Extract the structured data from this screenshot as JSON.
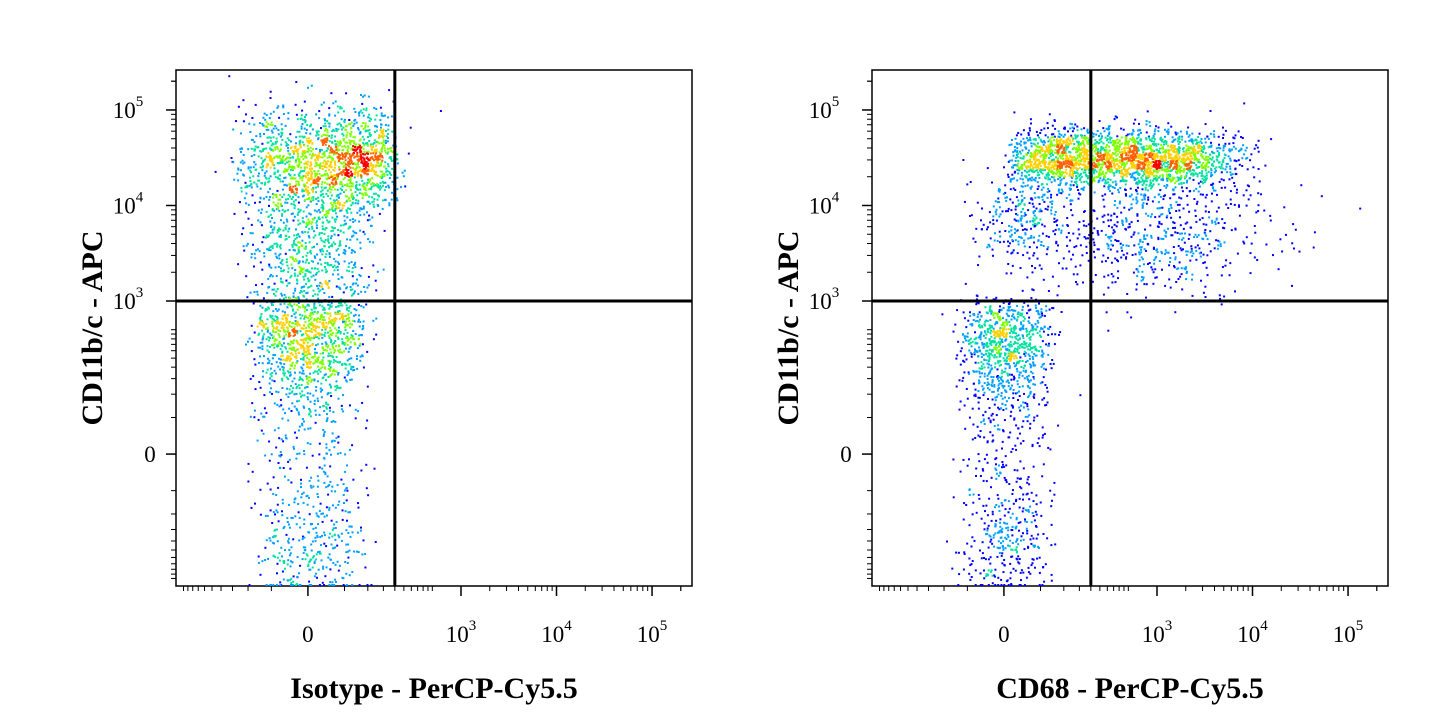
{
  "chart_data": [
    {
      "type": "scatter",
      "subtype": "flow-cytometry-density-dot-plot",
      "xlabel": "Isotype - PerCP-Cy5.5",
      "ylabel": "CD11b/c - APC",
      "xscale": "biexponential",
      "yscale": "biexponential",
      "x_ticks": [
        {
          "value": 0,
          "base": "0",
          "exp": ""
        },
        {
          "value": 1000,
          "base": "10",
          "exp": "3"
        },
        {
          "value": 10000,
          "base": "10",
          "exp": "4"
        },
        {
          "value": 100000,
          "base": "10",
          "exp": "5"
        }
      ],
      "y_ticks": [
        {
          "value": 0,
          "base": "0",
          "exp": ""
        },
        {
          "value": 1000,
          "base": "10",
          "exp": "3"
        },
        {
          "value": 10000,
          "base": "10",
          "exp": "4"
        },
        {
          "value": 100000,
          "base": "10",
          "exp": "5"
        }
      ],
      "quadrant_gate": {
        "x": 200,
        "y": 1000
      },
      "populations": [
        {
          "x_center": 40,
          "y_center": 30000,
          "x_spread": 70,
          "y_spread": 0.28,
          "count": 1500
        },
        {
          "x_center": 0,
          "y_center": 3000,
          "x_spread": 45,
          "y_spread": 0.55,
          "count": 900
        },
        {
          "x_center": 0,
          "y_center": 200,
          "x_spread": 40,
          "y_spread": 350,
          "count": 1300
        }
      ],
      "outliers": [
        {
          "x": 600,
          "y": 100000
        },
        {
          "x": 120,
          "y": -200
        },
        {
          "x": 100,
          "y": 1500
        }
      ],
      "grid": false,
      "legend": "none"
    },
    {
      "type": "scatter",
      "subtype": "flow-cytometry-density-dot-plot",
      "xlabel": "CD68 - PerCP-Cy5.5",
      "ylabel": "CD11b/c - APC",
      "xscale": "biexponential",
      "yscale": "biexponential",
      "x_ticks": [
        {
          "value": 0,
          "base": "0",
          "exp": ""
        },
        {
          "value": 1000,
          "base": "10",
          "exp": "3"
        },
        {
          "value": 10000,
          "base": "10",
          "exp": "4"
        },
        {
          "value": 100000,
          "base": "10",
          "exp": "5"
        }
      ],
      "y_ticks": [
        {
          "value": 0,
          "base": "0",
          "exp": ""
        },
        {
          "value": 1000,
          "base": "10",
          "exp": "3"
        },
        {
          "value": 10000,
          "base": "10",
          "exp": "4"
        },
        {
          "value": 100000,
          "base": "10",
          "exp": "5"
        }
      ],
      "quadrant_gate": {
        "x": 200,
        "y": 1000
      },
      "populations": [
        {
          "x_center": 120,
          "y_center": 32000,
          "x_spread": 0.45,
          "y_spread": 0.16,
          "count": 1200
        },
        {
          "x_center": 1200,
          "y_center": 30000,
          "x_spread": 0.4,
          "y_spread": 0.16,
          "count": 1200
        },
        {
          "x_center": 800,
          "y_center": 5000,
          "x_spread": 0.7,
          "y_spread": 0.3,
          "count": 600
        },
        {
          "x_center": 20,
          "y_center": 8000,
          "x_spread": 30,
          "y_spread": 0.25,
          "count": 250
        },
        {
          "x_center": 0,
          "y_center": 200,
          "x_spread": 30,
          "y_spread": 350,
          "count": 1300
        }
      ],
      "outliers": [
        {
          "x": 8000,
          "y": 120000
        },
        {
          "x": 300,
          "y": 500
        },
        {
          "x": 150,
          "y": 100
        }
      ],
      "grid": false,
      "legend": "none"
    }
  ],
  "colors": {
    "density_scale": [
      "#0000ff",
      "#00a0ff",
      "#00e0a0",
      "#80ff00",
      "#ffd000",
      "#ff6000",
      "#ff0000"
    ],
    "gate_line": "#000000",
    "frame": "#000000"
  }
}
